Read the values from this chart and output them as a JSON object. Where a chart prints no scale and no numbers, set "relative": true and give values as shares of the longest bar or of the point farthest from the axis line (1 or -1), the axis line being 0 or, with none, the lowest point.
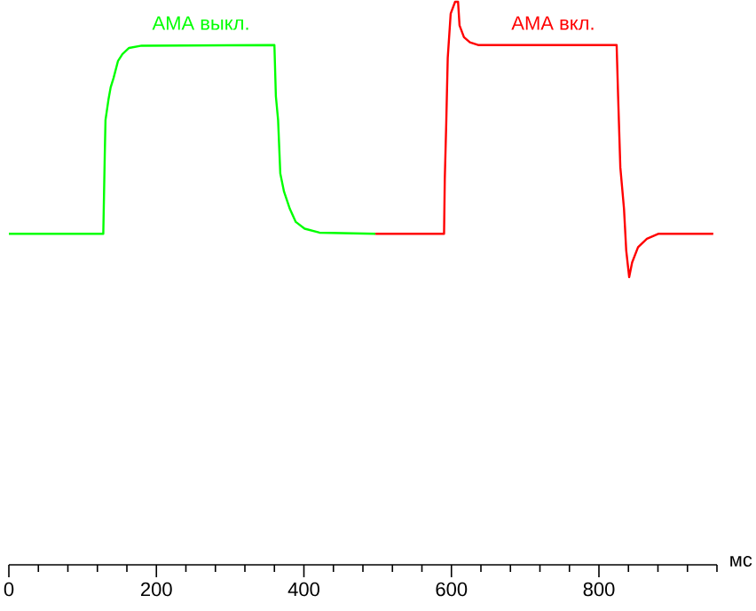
{
  "chart_data": {
    "type": "line",
    "relative": true,
    "xlabel": "мс",
    "xlim": [
      0,
      960
    ],
    "xticks": [
      0,
      {
        "value": 40,
        "label": null
      },
      {
        "value": 80,
        "label": null
      },
      {
        "value": 120,
        "label": null
      },
      {
        "value": 160,
        "label": null
      },
      200,
      {
        "value": 240,
        "label": null
      },
      {
        "value": 280,
        "label": null
      },
      {
        "value": 320,
        "label": null
      },
      {
        "value": 360,
        "label": null
      },
      400,
      {
        "value": 440,
        "label": null
      },
      {
        "value": 480,
        "label": null
      },
      {
        "value": 520,
        "label": null
      },
      {
        "value": 560,
        "label": null
      },
      600,
      {
        "value": 640,
        "label": null
      },
      {
        "value": 680,
        "label": null
      },
      {
        "value": 720,
        "label": null
      },
      {
        "value": 760,
        "label": null
      },
      800,
      {
        "value": 840,
        "label": null
      },
      {
        "value": 880,
        "label": null
      },
      {
        "value": 920,
        "label": null
      },
      {
        "value": 960,
        "label": null
      }
    ],
    "series": [
      {
        "name": "АМА выкл.",
        "color": "#00ff00",
        "x": [
          0,
          128,
          130,
          131,
          135,
          138,
          142,
          148,
          154,
          163,
          180,
          360,
          362,
          365,
          368,
          373,
          381,
          389,
          401,
          421,
          497
        ],
        "values": [
          0.588,
          0.588,
          0.727,
          0.79,
          0.826,
          0.848,
          0.865,
          0.895,
          0.907,
          0.918,
          0.922,
          0.923,
          0.832,
          0.79,
          0.695,
          0.663,
          0.632,
          0.609,
          0.597,
          0.59,
          0.588
        ]
      },
      {
        "name": "АМА вкл.",
        "color": "#ff0000",
        "x": [
          497,
          590,
          591,
          593,
          595,
          599,
          605,
          609,
          611,
          617,
          625,
          637,
          824,
          826,
          829,
          834,
          837,
          841,
          845,
          853,
          865,
          881,
          955
        ],
        "values": [
          0.588,
          0.588,
          0.685,
          0.785,
          0.9,
          0.979,
          1,
          1,
          0.958,
          0.937,
          0.928,
          0.923,
          0.923,
          0.832,
          0.706,
          0.632,
          0.558,
          0.511,
          0.537,
          0.564,
          0.579,
          0.588,
          0.588
        ]
      }
    ]
  }
}
